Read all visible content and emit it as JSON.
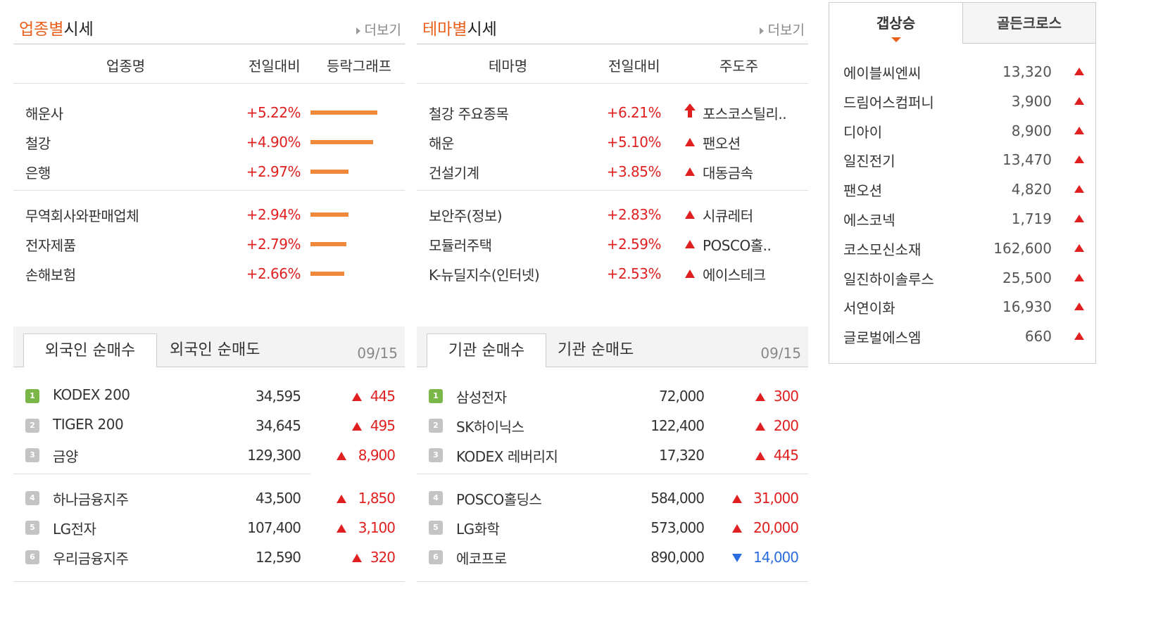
{
  "sector": {
    "title_hl": "업종별",
    "title_rest": "시세",
    "more": "더보기",
    "headers": {
      "name": "업종명",
      "change": "전일대비",
      "graph": "등락그래프"
    },
    "rows": [
      {
        "name": "해운사",
        "pct": "+5.22%",
        "bar": 5.22
      },
      {
        "name": "철강",
        "pct": "+4.90%",
        "bar": 4.9
      },
      {
        "name": "은행",
        "pct": "+2.97%",
        "bar": 2.97
      },
      {
        "name": "무역회사와판매업체",
        "pct": "+2.94%",
        "bar": 2.94
      },
      {
        "name": "전자제품",
        "pct": "+2.79%",
        "bar": 2.79
      },
      {
        "name": "손해보험",
        "pct": "+2.66%",
        "bar": 2.66
      }
    ]
  },
  "theme": {
    "title_hl": "테마별",
    "title_rest": "시세",
    "more": "더보기",
    "headers": {
      "name": "테마명",
      "change": "전일대비",
      "leader": "주도주"
    },
    "rows": [
      {
        "name": "철강 주요종목",
        "pct": "+6.21%",
        "leader": "포스코스틸리..",
        "icon": "upper-limit-arrow"
      },
      {
        "name": "해운",
        "pct": "+5.10%",
        "leader": "팬오션",
        "icon": "up-triangle"
      },
      {
        "name": "건설기계",
        "pct": "+3.85%",
        "leader": "대동금속",
        "icon": "up-triangle"
      },
      {
        "name": "보안주(정보)",
        "pct": "+2.83%",
        "leader": "시큐레터",
        "icon": "up-triangle"
      },
      {
        "name": "모듈러주택",
        "pct": "+2.59%",
        "leader": "POSCO홀..",
        "icon": "up-triangle"
      },
      {
        "name": "K-뉴딜지수(인터넷)",
        "pct": "+2.53%",
        "leader": "에이스테크",
        "icon": "up-triangle"
      }
    ]
  },
  "foreign": {
    "tab_active": "외국인 순매수",
    "tab_inactive": "외국인 순매도",
    "date": "09/15",
    "rows": [
      {
        "rank": "1",
        "name": "KODEX 200",
        "price": "34,595",
        "change": "445",
        "dir": "up"
      },
      {
        "rank": "2",
        "name": "TIGER 200",
        "price": "34,645",
        "change": "495",
        "dir": "up"
      },
      {
        "rank": "3",
        "name": "금양",
        "price": "129,300",
        "change": "8,900",
        "dir": "up"
      },
      {
        "rank": "4",
        "name": "하나금융지주",
        "price": "43,500",
        "change": "1,850",
        "dir": "up"
      },
      {
        "rank": "5",
        "name": "LG전자",
        "price": "107,400",
        "change": "3,100",
        "dir": "up"
      },
      {
        "rank": "6",
        "name": "우리금융지주",
        "price": "12,590",
        "change": "320",
        "dir": "up"
      }
    ]
  },
  "institution": {
    "tab_active": "기관 순매수",
    "tab_inactive": "기관 순매도",
    "date": "09/15",
    "rows": [
      {
        "rank": "1",
        "name": "삼성전자",
        "price": "72,000",
        "change": "300",
        "dir": "up"
      },
      {
        "rank": "2",
        "name": "SK하이닉스",
        "price": "122,400",
        "change": "200",
        "dir": "up"
      },
      {
        "rank": "3",
        "name": "KODEX 레버리지",
        "price": "17,320",
        "change": "445",
        "dir": "up"
      },
      {
        "rank": "4",
        "name": "POSCO홀딩스",
        "price": "584,000",
        "change": "31,000",
        "dir": "up"
      },
      {
        "rank": "5",
        "name": "LG화학",
        "price": "573,000",
        "change": "20,000",
        "dir": "up"
      },
      {
        "rank": "6",
        "name": "에코프로",
        "price": "890,000",
        "change": "14,000",
        "dir": "down"
      }
    ]
  },
  "gap": {
    "tab_active": "갭상승",
    "tab_inactive": "골든크로스",
    "rows": [
      {
        "name": "에이블씨엔씨",
        "price": "13,320"
      },
      {
        "name": "드림어스컴퍼니",
        "price": "3,900"
      },
      {
        "name": "디아이",
        "price": "8,900"
      },
      {
        "name": "일진전기",
        "price": "13,470"
      },
      {
        "name": "팬오션",
        "price": "4,820"
      },
      {
        "name": "에스코넥",
        "price": "1,719"
      },
      {
        "name": "코스모신소재",
        "price": "162,600"
      },
      {
        "name": "일진하이솔루스",
        "price": "25,500"
      },
      {
        "name": "서연이화",
        "price": "16,930"
      },
      {
        "name": "글로벌에스엠",
        "price": "660"
      }
    ]
  },
  "colors": {
    "accent": "#e8601c",
    "up": "#e02020",
    "down": "#2b6de0",
    "bar": "#f08a3a",
    "rank_first": "#7ab648"
  }
}
